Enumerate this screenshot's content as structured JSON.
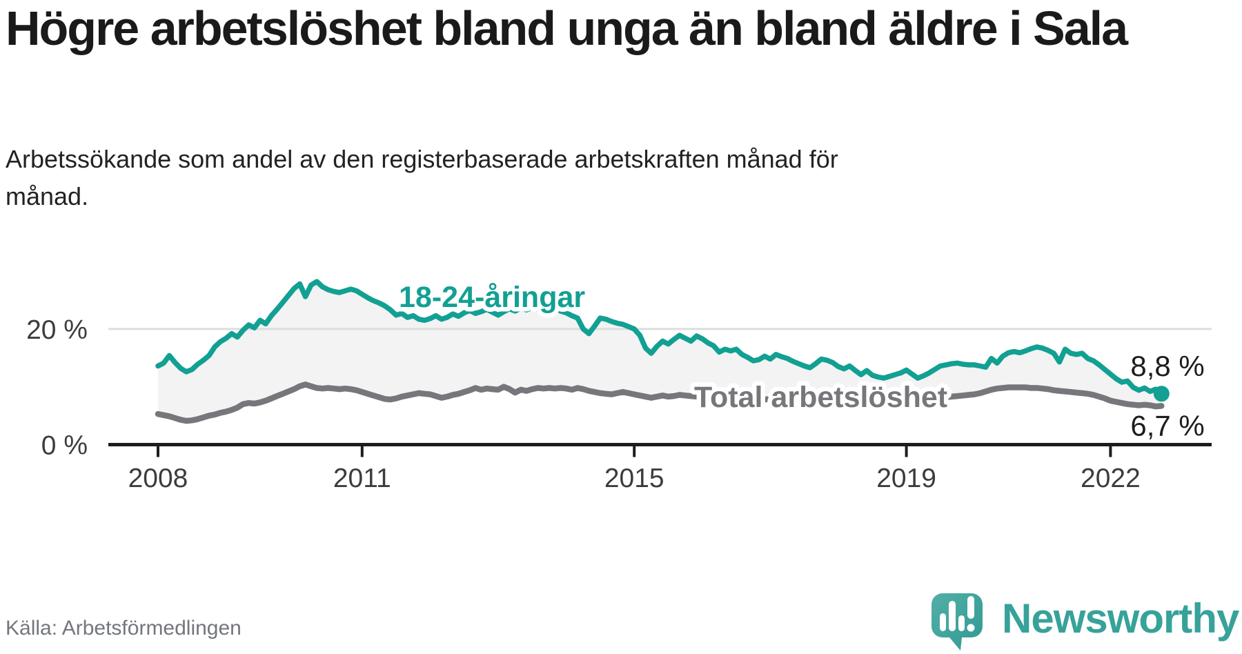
{
  "header": {
    "title": "Högre arbetslöshet bland unga än bland äldre i Sala",
    "subtitle": "Arbetssökande som andel av den registerbaserade arbetskraften månad för månad."
  },
  "footer": {
    "source": "Källa: Arbetsförmedlingen"
  },
  "logo": {
    "name": "Newsworthy",
    "icon": "speech-bubble-bar-chart-icon",
    "color": "#37a29a",
    "bubble_color_light": "#53afa7",
    "bubble_color_dark": "#2f9a93"
  },
  "colors": {
    "accent_teal": "#12a093",
    "neutral_gray": "#76777b",
    "fill_between": "#f3f3f3",
    "gridline": "#dddddd",
    "axis": "#1d1d1b",
    "text_dark": "#1a1a1a"
  },
  "chart_data": {
    "type": "line",
    "title": "Högre arbetslöshet bland unga än bland äldre i Sala",
    "subtitle": "Arbetssökande som andel av den registerbaserade arbetskraften månad för månad.",
    "unit": "%",
    "x_interval": "monthly",
    "x_start": "2008-01",
    "x_end": "2022-10",
    "x_tick_labels": [
      "2008",
      "2011",
      "2015",
      "2019",
      "2022"
    ],
    "x_tick_years": [
      2008,
      2011,
      2015,
      2019,
      2022
    ],
    "y_ticks": [
      {
        "value": 0,
        "label": "0 %"
      },
      {
        "value": 20,
        "label": "20 %"
      }
    ],
    "ylim": [
      0,
      30
    ],
    "grid": "horizontal line at 20% only",
    "legend_position": "inline labels on lines",
    "series": [
      {
        "name": "18-24-åringar",
        "color": "#12a093",
        "end_label": "8,8 %",
        "end_value": 8.8,
        "end_marker": "dot",
        "label_anchor": {
          "year": 2011.54,
          "value": 23.8
        },
        "values": [
          13.6,
          14.1,
          15.4,
          14.2,
          13.2,
          12.6,
          13.0,
          13.9,
          14.6,
          15.4,
          16.9,
          17.8,
          18.4,
          19.2,
          18.6,
          19.8,
          20.7,
          20.2,
          21.5,
          20.9,
          22.3,
          23.4,
          24.6,
          25.8,
          27.0,
          27.8,
          25.6,
          27.6,
          28.2,
          27.3,
          26.8,
          26.5,
          26.3,
          26.6,
          26.9,
          26.6,
          26.0,
          25.4,
          24.9,
          24.5,
          24.0,
          23.3,
          22.4,
          22.7,
          22.0,
          22.3,
          21.7,
          21.5,
          21.8,
          22.3,
          21.7,
          22.0,
          22.6,
          22.2,
          22.8,
          23.2,
          22.7,
          23.0,
          23.4,
          22.9,
          22.4,
          23.0,
          23.5,
          23.1,
          23.6,
          23.3,
          23.7,
          23.4,
          23.0,
          23.3,
          23.6,
          23.1,
          22.8,
          22.3,
          21.9,
          20.0,
          19.2,
          20.5,
          21.9,
          21.7,
          21.3,
          21.0,
          20.8,
          20.4,
          20.0,
          18.9,
          16.7,
          15.8,
          17.0,
          17.9,
          17.4,
          18.2,
          18.9,
          18.4,
          17.9,
          18.8,
          18.3,
          17.6,
          17.1,
          16.0,
          16.5,
          16.2,
          16.5,
          15.6,
          15.1,
          14.5,
          14.7,
          15.3,
          14.8,
          15.6,
          15.2,
          14.9,
          14.4,
          14.0,
          13.6,
          13.3,
          14.0,
          14.8,
          14.6,
          14.2,
          13.5,
          13.1,
          13.6,
          12.8,
          12.1,
          12.8,
          12.0,
          11.7,
          11.5,
          11.8,
          12.1,
          12.4,
          12.9,
          12.2,
          11.5,
          11.9,
          12.4,
          13.0,
          13.6,
          13.8,
          14.0,
          14.1,
          13.9,
          13.8,
          13.8,
          13.6,
          13.4,
          14.9,
          14.1,
          15.3,
          15.9,
          16.1,
          15.9,
          16.2,
          16.6,
          16.9,
          16.7,
          16.3,
          15.8,
          14.3,
          16.5,
          15.8,
          15.6,
          15.8,
          14.9,
          14.5,
          13.8,
          13.0,
          12.2,
          11.4,
          10.8,
          11.0,
          9.9,
          9.4,
          9.8,
          9.2,
          9.6,
          8.8
        ]
      },
      {
        "name": "Total arbetslöshet",
        "color": "#76777b",
        "end_label": "6,7 %",
        "end_value": 6.7,
        "end_marker": "none",
        "label_anchor": {
          "year": 2015.88,
          "value": 6.5
        },
        "values": [
          5.3,
          5.1,
          4.9,
          4.6,
          4.3,
          4.1,
          4.2,
          4.4,
          4.7,
          5.0,
          5.2,
          5.5,
          5.7,
          6.0,
          6.4,
          7.0,
          7.2,
          7.1,
          7.3,
          7.6,
          8.0,
          8.4,
          8.8,
          9.2,
          9.6,
          10.1,
          10.4,
          10.1,
          9.8,
          9.7,
          9.8,
          9.7,
          9.6,
          9.7,
          9.6,
          9.4,
          9.1,
          8.8,
          8.5,
          8.2,
          7.9,
          7.8,
          8.0,
          8.3,
          8.5,
          8.7,
          8.9,
          8.8,
          8.7,
          8.4,
          8.1,
          8.3,
          8.6,
          8.8,
          9.1,
          9.4,
          9.8,
          9.5,
          9.7,
          9.6,
          9.5,
          10.0,
          9.6,
          9.0,
          9.5,
          9.3,
          9.6,
          9.8,
          9.7,
          9.8,
          9.7,
          9.8,
          9.7,
          9.5,
          9.8,
          9.6,
          9.3,
          9.1,
          8.9,
          8.8,
          8.7,
          8.9,
          9.1,
          8.9,
          8.7,
          8.5,
          8.3,
          8.1,
          8.3,
          8.5,
          8.3,
          8.4,
          8.6,
          8.5,
          8.4,
          8.3,
          8.2,
          8.1,
          8.0,
          7.9,
          8.0,
          7.9,
          7.8,
          7.9,
          7.7,
          7.6,
          7.7,
          7.8,
          7.9,
          7.8,
          7.7,
          7.6,
          7.5,
          7.4,
          7.5,
          7.6,
          7.7,
          7.6,
          7.5,
          7.4,
          7.5,
          7.6,
          7.5,
          7.4,
          7.3,
          7.2,
          7.1,
          7.2,
          7.3,
          7.4,
          7.5,
          7.6,
          7.7,
          7.8,
          7.9,
          8.0,
          8.1,
          8.2,
          8.3,
          8.2,
          8.3,
          8.4,
          8.5,
          8.6,
          8.7,
          8.9,
          9.2,
          9.5,
          9.7,
          9.8,
          9.9,
          9.9,
          9.9,
          9.9,
          9.8,
          9.8,
          9.7,
          9.6,
          9.4,
          9.3,
          9.2,
          9.1,
          9.0,
          8.9,
          8.8,
          8.6,
          8.3,
          8.0,
          7.6,
          7.4,
          7.2,
          7.0,
          6.9,
          6.8,
          6.9,
          6.8,
          6.6,
          6.7
        ]
      }
    ]
  }
}
